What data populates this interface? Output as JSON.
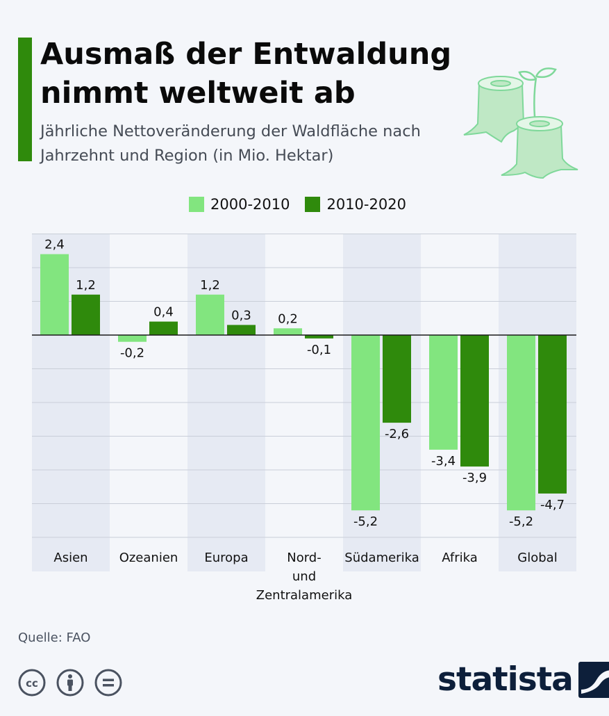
{
  "header": {
    "title": "Ausmaß der Entwaldung nimmt weltweit ab",
    "subtitle": "Jährliche Nettoveränderung der Waldfläche nach Jahrzehnt und Region (in Mio. Hektar)"
  },
  "footer": {
    "source": "Quelle: FAO",
    "brand": "statista",
    "license_icons": [
      "cc-icon",
      "attribution-icon",
      "no-derivatives-icon"
    ]
  },
  "colors": {
    "accent": "#2f8a0c",
    "series_light": "#82e57f",
    "series_dark": "#2f8a0c",
    "band": "#e6eaf3",
    "brand": "#0d1f3a"
  },
  "chart_data": {
    "type": "bar",
    "categories": [
      "Asien",
      "Ozeanien",
      "Europa",
      "Nord- und Zentralamerika",
      "Südamerika",
      "Afrika",
      "Global"
    ],
    "category_label_lines": [
      [
        "Asien"
      ],
      [
        "Ozeanien"
      ],
      [
        "Europa"
      ],
      [
        "Nord-",
        "und",
        "Zentralamerika"
      ],
      [
        "Südamerika"
      ],
      [
        "Afrika"
      ],
      [
        "Global"
      ]
    ],
    "series": [
      {
        "name": "2000-2010",
        "values": [
          2.4,
          -0.2,
          1.2,
          0.2,
          -5.2,
          -3.4,
          -5.2
        ],
        "labels": [
          "2,4",
          "-0,2",
          "1,2",
          "0,2",
          "-5,2",
          "-3,4",
          "-5,2"
        ]
      },
      {
        "name": "2010-2020",
        "values": [
          1.2,
          0.4,
          0.3,
          -0.1,
          -2.6,
          -3.9,
          -4.7
        ],
        "labels": [
          "1,2",
          "0,4",
          "0,3",
          "-0,1",
          "-2,6",
          "-3,9",
          "-4,7"
        ]
      }
    ],
    "ylim": [
      -6,
      3
    ],
    "grid": true,
    "legend_position": "top-center",
    "xlabel": "",
    "ylabel": ""
  }
}
